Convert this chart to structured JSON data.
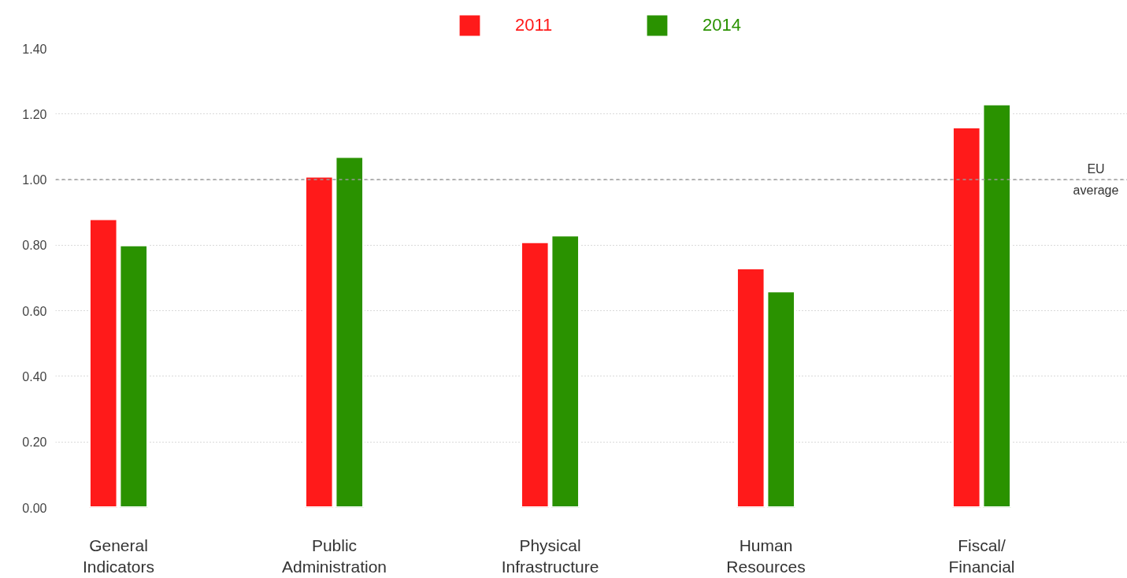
{
  "chart_data": {
    "type": "bar",
    "categories": [
      "General Indicators",
      "Public Administration",
      "Physical Infrastructure",
      "Human Resources",
      "Fiscal/Financial"
    ],
    "series": [
      {
        "name": "2011",
        "color": "#ff1a1a",
        "values": [
          0.88,
          1.01,
          0.81,
          0.73,
          1.16
        ]
      },
      {
        "name": "2014",
        "color": "#2a9200",
        "values": [
          0.8,
          1.07,
          0.83,
          0.66,
          1.23
        ]
      }
    ],
    "ylim": [
      0,
      1.4
    ],
    "yticks": [
      {
        "value": 0,
        "label": "0.00"
      },
      {
        "value": 0.2,
        "label": "0.20"
      },
      {
        "value": 0.4,
        "label": "0.40"
      },
      {
        "value": 0.6,
        "label": "0.60"
      },
      {
        "value": 0.8,
        "label": "0.80"
      },
      {
        "value": 1.0,
        "label": "1.00"
      },
      {
        "value": 1.2,
        "label": "1.20"
      },
      {
        "value": 1.4,
        "label": "1.40"
      }
    ],
    "ref_lines": [
      {
        "axis": "y",
        "value": 1.0,
        "label": "EU average",
        "color": "#999999",
        "line_style": "dashed"
      }
    ],
    "grid": "y",
    "legend": "top"
  }
}
